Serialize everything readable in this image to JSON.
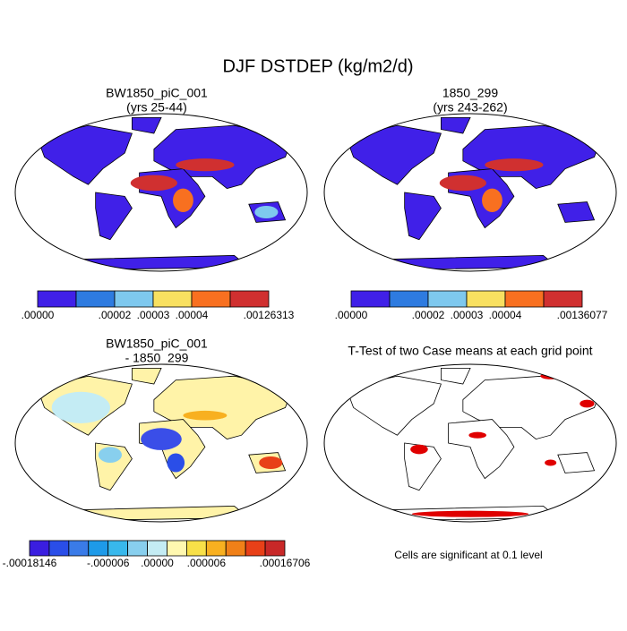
{
  "title": "DJF DSTDEP (kg/m2/d)",
  "panels": [
    {
      "title": [
        "BW1850_piC_001",
        "(yrs 25-44)"
      ],
      "colorbar": {
        "colors": [
          "#4020e8",
          "#2e7be0",
          "#7ec8ee",
          "#f8e060",
          "#f87020",
          "#d03030"
        ],
        "labels": [
          ".00000",
          ".00002",
          ".00003",
          ".00004",
          ".00126313"
        ]
      }
    },
    {
      "title": [
        "1850_299",
        "(yrs 243-262)"
      ],
      "colorbar": {
        "colors": [
          "#4020e8",
          "#2e7be0",
          "#7ec8ee",
          "#f8e060",
          "#f87020",
          "#d03030"
        ],
        "labels": [
          ".00000",
          ".00002",
          ".00003",
          ".00004",
          ".00136077"
        ]
      }
    },
    {
      "title": [
        "BW1850_piC_001",
        "- 1850_299"
      ],
      "colorbar": {
        "colors": [
          "#3a1ee0",
          "#2a4ee8",
          "#3a7be8",
          "#1e9ae8",
          "#38b8ec",
          "#88cfee",
          "#c4ecf4",
          "#fff8b0",
          "#f8e048",
          "#f8b020",
          "#f08018",
          "#e84018",
          "#c82828"
        ],
        "labels": [
          "-.00018146",
          "-.000006",
          ".00000",
          ".000006",
          ".00016706"
        ]
      }
    },
    {
      "title": [
        "T-Test of two Case means at each grid point"
      ],
      "caption": "Cells are significant at 0.1 level"
    }
  ]
}
